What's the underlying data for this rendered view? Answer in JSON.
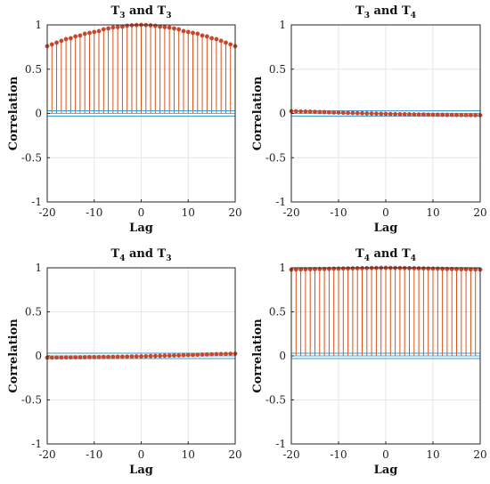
{
  "figure": {
    "colors": {
      "stem": "#d95319",
      "marker": "#c8462a",
      "bound": "#3a9bd5",
      "axis": "#262626",
      "grid": "#e6e6e6"
    }
  },
  "chart_data": [
    {
      "type": "stem",
      "title": {
        "main": "T",
        "sub1": "3",
        "mid": " and T",
        "sub2": "3"
      },
      "xlabel": "Lag",
      "ylabel": "Correlation",
      "xlim": [
        -20,
        20
      ],
      "ylim": [
        -1,
        1
      ],
      "xticks": [
        -20,
        -10,
        0,
        10,
        20
      ],
      "xtick_labels": [
        "-20",
        "-10",
        "0",
        "10",
        "20"
      ],
      "yticks": [
        -1,
        -0.5,
        0,
        0.5,
        1
      ],
      "ytick_labels": [
        "-1",
        "-0.5",
        "0",
        "0.5",
        "1"
      ],
      "grid": true,
      "confidence_bounds": [
        0.03,
        -0.03
      ],
      "x": [
        -20,
        -19,
        -18,
        -17,
        -16,
        -15,
        -14,
        -13,
        -12,
        -11,
        -10,
        -9,
        -8,
        -7,
        -6,
        -5,
        -4,
        -3,
        -2,
        -1,
        0,
        1,
        2,
        3,
        4,
        5,
        6,
        7,
        8,
        9,
        10,
        11,
        12,
        13,
        14,
        15,
        16,
        17,
        18,
        19,
        20
      ],
      "values": [
        0.76,
        0.78,
        0.8,
        0.82,
        0.84,
        0.85,
        0.87,
        0.88,
        0.9,
        0.91,
        0.92,
        0.93,
        0.95,
        0.96,
        0.97,
        0.975,
        0.98,
        0.99,
        0.995,
        0.998,
        1.0,
        0.998,
        0.995,
        0.99,
        0.98,
        0.975,
        0.97,
        0.96,
        0.95,
        0.93,
        0.92,
        0.91,
        0.9,
        0.88,
        0.87,
        0.85,
        0.84,
        0.82,
        0.8,
        0.78,
        0.76
      ]
    },
    {
      "type": "stem",
      "title": {
        "main": "T",
        "sub1": "3",
        "mid": " and T",
        "sub2": "4"
      },
      "xlabel": "Lag",
      "ylabel": "Correlation",
      "xlim": [
        -20,
        20
      ],
      "ylim": [
        -1,
        1
      ],
      "xticks": [
        -20,
        -10,
        0,
        10,
        20
      ],
      "xtick_labels": [
        "-20",
        "-10",
        "0",
        "10",
        "20"
      ],
      "yticks": [
        -1,
        -0.5,
        0,
        0.5,
        1
      ],
      "ytick_labels": [
        "-1",
        "-0.5",
        "0",
        "0.5",
        "1"
      ],
      "grid": true,
      "confidence_bounds": [
        0.03,
        -0.03
      ],
      "x": [
        -20,
        -19,
        -18,
        -17,
        -16,
        -15,
        -14,
        -13,
        -12,
        -11,
        -10,
        -9,
        -8,
        -7,
        -6,
        -5,
        -4,
        -3,
        -2,
        -1,
        0,
        1,
        2,
        3,
        4,
        5,
        6,
        7,
        8,
        9,
        10,
        11,
        12,
        13,
        14,
        15,
        16,
        17,
        18,
        19,
        20
      ],
      "values": [
        0.025,
        0.024,
        0.022,
        0.021,
        0.02,
        0.018,
        0.016,
        0.015,
        0.013,
        0.011,
        0.01,
        0.008,
        0.006,
        0.005,
        0.003,
        0.002,
        0.0,
        -0.001,
        -0.002,
        -0.004,
        -0.005,
        -0.006,
        -0.007,
        -0.008,
        -0.009,
        -0.01,
        -0.011,
        -0.012,
        -0.012,
        -0.013,
        -0.014,
        -0.014,
        -0.015,
        -0.016,
        -0.016,
        -0.017,
        -0.017,
        -0.018,
        -0.018,
        -0.019,
        -0.02
      ]
    },
    {
      "type": "stem",
      "title": {
        "main": "T",
        "sub1": "4",
        "mid": " and T",
        "sub2": "3"
      },
      "xlabel": "Lag",
      "ylabel": "Correlation",
      "xlim": [
        -20,
        20
      ],
      "ylim": [
        -1,
        1
      ],
      "xticks": [
        -20,
        -10,
        0,
        10,
        20
      ],
      "xtick_labels": [
        "-20",
        "-10",
        "0",
        "10",
        "20"
      ],
      "yticks": [
        -1,
        -0.5,
        0,
        0.5,
        1
      ],
      "ytick_labels": [
        "-1",
        "-0.5",
        "0",
        "0.5",
        "1"
      ],
      "grid": true,
      "confidence_bounds": [
        0.03,
        -0.03
      ],
      "x": [
        -20,
        -19,
        -18,
        -17,
        -16,
        -15,
        -14,
        -13,
        -12,
        -11,
        -10,
        -9,
        -8,
        -7,
        -6,
        -5,
        -4,
        -3,
        -2,
        -1,
        0,
        1,
        2,
        3,
        4,
        5,
        6,
        7,
        8,
        9,
        10,
        11,
        12,
        13,
        14,
        15,
        16,
        17,
        18,
        19,
        20
      ],
      "values": [
        -0.02,
        -0.019,
        -0.018,
        -0.018,
        -0.017,
        -0.017,
        -0.016,
        -0.016,
        -0.015,
        -0.014,
        -0.014,
        -0.013,
        -0.012,
        -0.012,
        -0.011,
        -0.01,
        -0.009,
        -0.008,
        -0.007,
        -0.006,
        -0.005,
        -0.004,
        -0.002,
        -0.001,
        0.0,
        0.002,
        0.003,
        0.005,
        0.006,
        0.008,
        0.01,
        0.011,
        0.013,
        0.015,
        0.016,
        0.018,
        0.02,
        0.021,
        0.022,
        0.024,
        0.025
      ]
    },
    {
      "type": "stem",
      "title": {
        "main": "T",
        "sub1": "4",
        "mid": " and T",
        "sub2": "4"
      },
      "xlabel": "Lag",
      "ylabel": "Correlation",
      "xlim": [
        -20,
        20
      ],
      "ylim": [
        -1,
        1
      ],
      "xticks": [
        -20,
        -10,
        0,
        10,
        20
      ],
      "xtick_labels": [
        "-20",
        "-10",
        "0",
        "10",
        "20"
      ],
      "yticks": [
        -1,
        -0.5,
        0,
        0.5,
        1
      ],
      "ytick_labels": [
        "-1",
        "-0.5",
        "0",
        "0.5",
        "1"
      ],
      "grid": true,
      "confidence_bounds": [
        0.03,
        -0.03
      ],
      "x": [
        -20,
        -19,
        -18,
        -17,
        -16,
        -15,
        -14,
        -13,
        -12,
        -11,
        -10,
        -9,
        -8,
        -7,
        -6,
        -5,
        -4,
        -3,
        -2,
        -1,
        0,
        1,
        2,
        3,
        4,
        5,
        6,
        7,
        8,
        9,
        10,
        11,
        12,
        13,
        14,
        15,
        16,
        17,
        18,
        19,
        20
      ],
      "values": [
        0.98,
        0.981,
        0.982,
        0.983,
        0.984,
        0.985,
        0.986,
        0.987,
        0.988,
        0.99,
        0.991,
        0.992,
        0.993,
        0.994,
        0.995,
        0.996,
        0.997,
        0.998,
        0.998,
        0.999,
        1.0,
        0.999,
        0.998,
        0.998,
        0.997,
        0.996,
        0.995,
        0.994,
        0.993,
        0.992,
        0.991,
        0.99,
        0.988,
        0.987,
        0.986,
        0.985,
        0.984,
        0.983,
        0.982,
        0.981,
        0.98
      ]
    }
  ]
}
